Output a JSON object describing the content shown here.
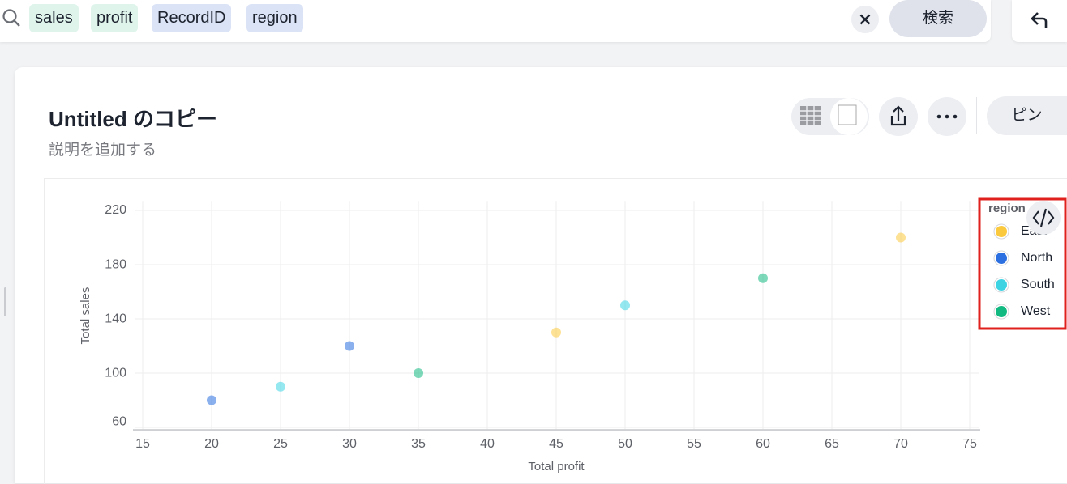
{
  "search": {
    "tokens": [
      "sales",
      "profit",
      "RecordID",
      "region"
    ],
    "button": "検索"
  },
  "header": {
    "title": "Untitled のコピー",
    "description": "説明を追加する",
    "pin": "ピン"
  },
  "chart_data": {
    "type": "scatter",
    "x_label": "Total profit",
    "y_label": "Total sales",
    "legend_title": "region",
    "series": [
      {
        "name": "East",
        "color": "#fbc93d",
        "x": [
          45,
          70
        ],
        "values": [
          130,
          200
        ]
      },
      {
        "name": "North",
        "color": "#2b6fe0",
        "x": [
          20,
          30
        ],
        "values": [
          80,
          120
        ]
      },
      {
        "name": "South",
        "color": "#3ed3e3",
        "x": [
          25,
          50
        ],
        "values": [
          90,
          150
        ]
      },
      {
        "name": "West",
        "color": "#12b980",
        "x": [
          35,
          60
        ],
        "values": [
          100,
          170
        ]
      }
    ],
    "xlim": [
      14.5,
      75.5
    ],
    "ylim": [
      58,
      227
    ],
    "xticks": [
      15,
      20,
      25,
      30,
      35,
      40,
      45,
      50,
      55,
      60,
      65,
      70,
      75
    ],
    "yticks": [
      60,
      100,
      140,
      180,
      220
    ],
    "grid": true,
    "legend_position": "right"
  }
}
